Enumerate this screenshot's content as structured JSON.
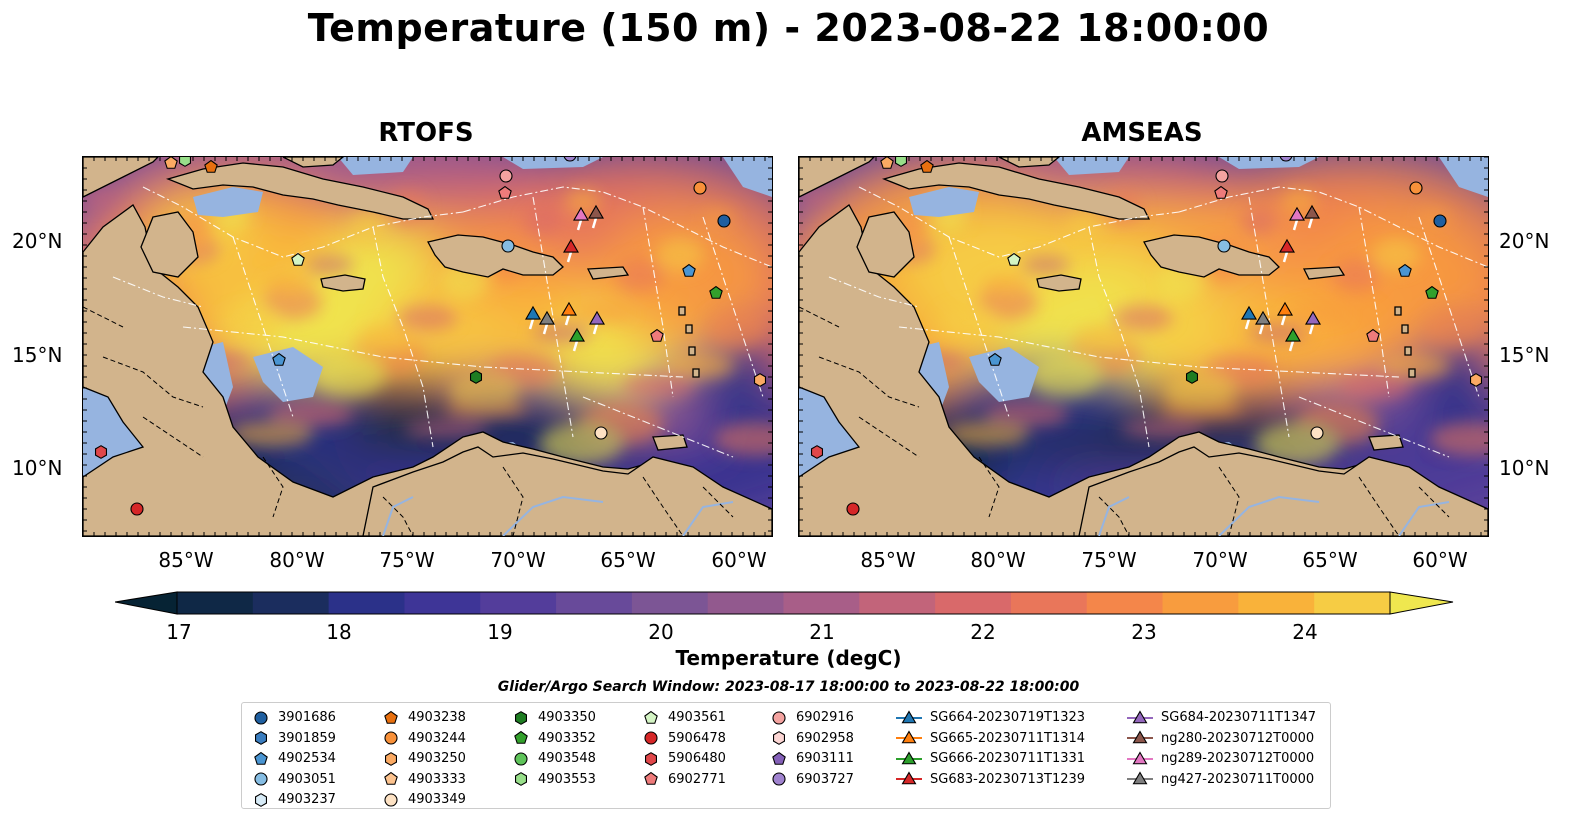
{
  "title": "Temperature (150 m) - 2023-08-22 18:00:00",
  "panels": [
    {
      "title": "RTOFS"
    },
    {
      "title": "AMSEAS"
    }
  ],
  "lat_ticks": [
    "20°N",
    "15°N",
    "10°N"
  ],
  "lon_ticks": [
    "85°W",
    "80°W",
    "75°W",
    "70°W",
    "65°W",
    "60°W"
  ],
  "colorbar": {
    "label": "Temperature (degC)",
    "ticks": [
      "17",
      "18",
      "19",
      "20",
      "21",
      "22",
      "23",
      "24"
    ],
    "min": 16.5,
    "max": 24.5,
    "colors": [
      "#062334",
      "#0f2846",
      "#1b2d5e",
      "#2b3189",
      "#3e3597",
      "#533d9b",
      "#684a9a",
      "#7c5595",
      "#92598e",
      "#a85e88",
      "#c2647a",
      "#d9696a",
      "#e9765a",
      "#f4864a",
      "#f89c3e",
      "#f9b23a",
      "#f6cc44",
      "#efe74f"
    ]
  },
  "legend": {
    "title": "Glider/Argo Search Window: 2023-08-17 18:00:00 to 2023-08-22 18:00:00",
    "columns": [
      [
        {
          "label": "3901686",
          "marker": "circle",
          "color": "#1f5fa0"
        },
        {
          "label": "3901859",
          "marker": "hexagon",
          "color": "#3a7dbf"
        },
        {
          "label": "4902534",
          "marker": "pentagon",
          "color": "#4a95d2"
        },
        {
          "label": "4903051",
          "marker": "circle",
          "color": "#86bde3"
        },
        {
          "label": "4903237",
          "marker": "hexagon",
          "color": "#d7ebf7"
        }
      ],
      [
        {
          "label": "4903238",
          "marker": "pentagon",
          "color": "#e8700f"
        },
        {
          "label": "4903244",
          "marker": "circle",
          "color": "#f8913a"
        },
        {
          "label": "4903250",
          "marker": "hexagon",
          "color": "#fbaa63"
        },
        {
          "label": "4903333",
          "marker": "pentagon",
          "color": "#fcc38f"
        },
        {
          "label": "4903349",
          "marker": "circle",
          "color": "#fde2c4"
        }
      ],
      [
        {
          "label": "4903350",
          "marker": "hexagon",
          "color": "#1e7d22"
        },
        {
          "label": "4903352",
          "marker": "pentagon",
          "color": "#33a02c"
        },
        {
          "label": "4903548",
          "marker": "circle",
          "color": "#5fc45a"
        },
        {
          "label": "4903553",
          "marker": "hexagon",
          "color": "#98df8a"
        }
      ],
      [
        {
          "label": "4903561",
          "marker": "pentagon",
          "color": "#d4f4c4"
        },
        {
          "label": "5906478",
          "marker": "circle",
          "color": "#d62728"
        },
        {
          "label": "5906480",
          "marker": "hexagon",
          "color": "#e0474a"
        },
        {
          "label": "6902771",
          "marker": "pentagon",
          "color": "#ee7b7b"
        }
      ],
      [
        {
          "label": "6902916",
          "marker": "circle",
          "color": "#f4a3a0"
        },
        {
          "label": "6902958",
          "marker": "hexagon",
          "color": "#fcd6d4"
        },
        {
          "label": "6903111",
          "marker": "pentagon",
          "color": "#8460b8"
        },
        {
          "label": "6903727",
          "marker": "circle",
          "color": "#a083cf"
        }
      ],
      [
        {
          "label": "SG664-20230719T1323",
          "marker": "triangle-line",
          "color": "#1f77b4"
        },
        {
          "label": "SG665-20230711T1314",
          "marker": "triangle-line",
          "color": "#ff7f0e"
        },
        {
          "label": "SG666-20230711T1331",
          "marker": "triangle-line",
          "color": "#2ca02c"
        },
        {
          "label": "SG683-20230713T1239",
          "marker": "triangle-line",
          "color": "#d62728"
        }
      ],
      [
        {
          "label": "SG684-20230711T1347",
          "marker": "triangle-line",
          "color": "#9467bd"
        },
        {
          "label": "ng280-20230712T0000",
          "marker": "triangle-line",
          "color": "#8c564b"
        },
        {
          "label": "ng289-20230712T0000",
          "marker": "triangle-line",
          "color": "#e377c2"
        },
        {
          "label": "ng427-20230711T0000",
          "marker": "triangle-line",
          "color": "#7f7f7f"
        }
      ]
    ]
  },
  "colors": {
    "land": "#d2b48c",
    "shallow_water": "#96b4e0",
    "deep_cold": "#062334",
    "warm": "#efe74f"
  }
}
